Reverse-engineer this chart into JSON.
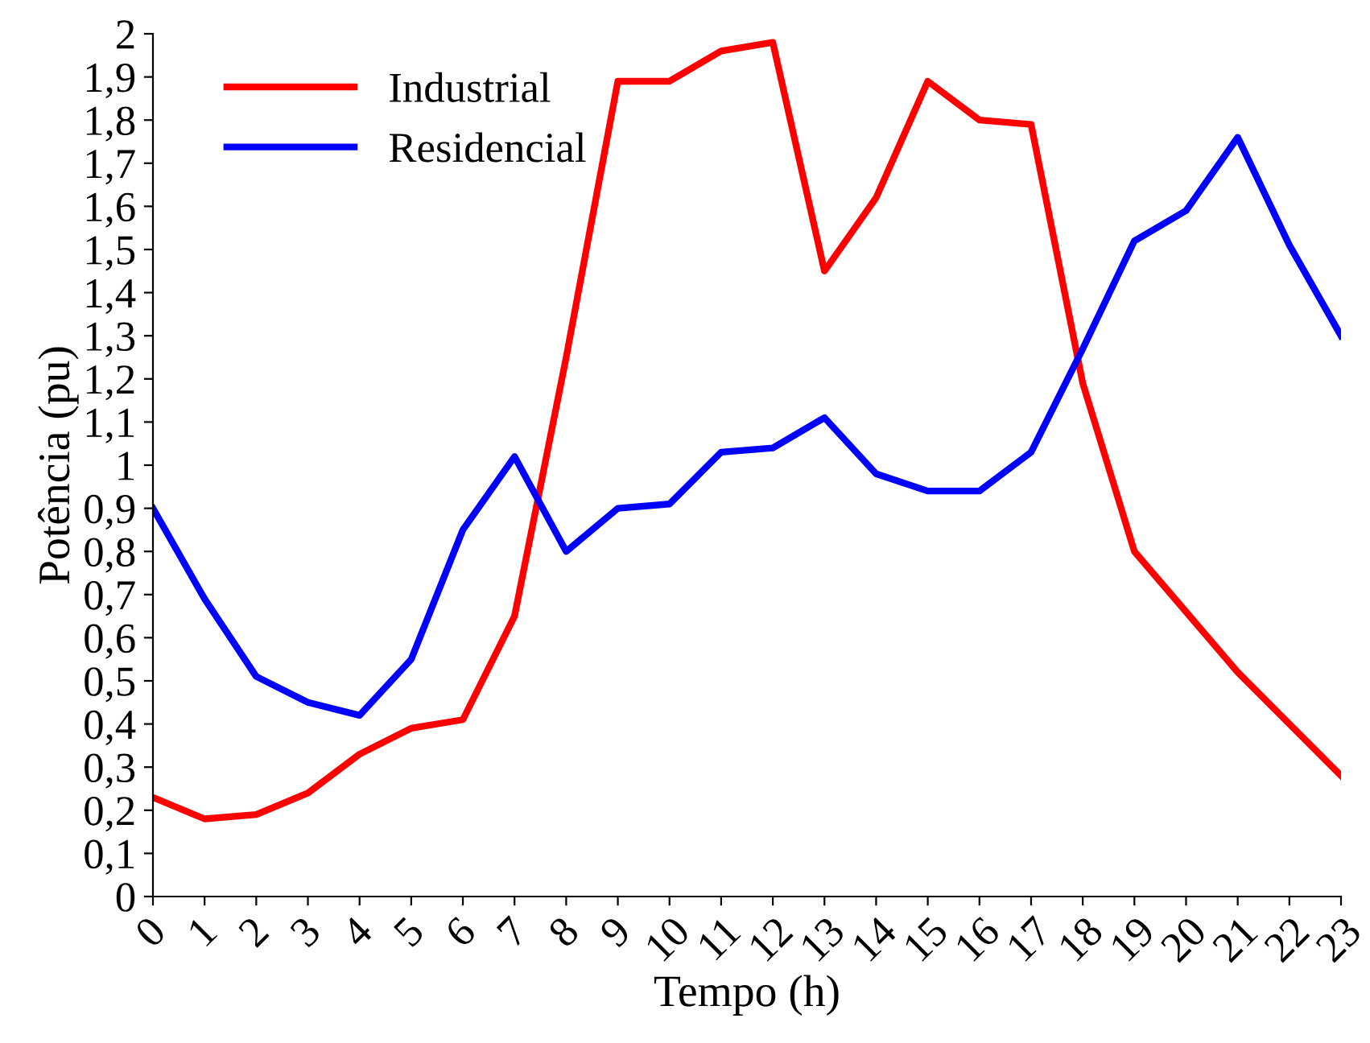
{
  "chart_data": {
    "type": "line",
    "xlabel": "Tempo (h)",
    "ylabel": "Potência (pu)",
    "x": [
      0,
      1,
      2,
      3,
      4,
      5,
      6,
      7,
      8,
      9,
      10,
      11,
      12,
      13,
      14,
      15,
      16,
      17,
      18,
      19,
      20,
      21,
      22,
      23
    ],
    "series": [
      {
        "name": "Industrial",
        "color": "#ff0000",
        "values": [
          0.23,
          0.18,
          0.19,
          0.24,
          0.33,
          0.39,
          0.41,
          0.65,
          1.25,
          1.89,
          1.89,
          1.96,
          1.98,
          1.45,
          1.62,
          1.89,
          1.8,
          1.79,
          1.19,
          0.8,
          0.66,
          0.52,
          0.4,
          0.28
        ]
      },
      {
        "name": "Residencial",
        "color": "#0000ff",
        "values": [
          0.9,
          0.69,
          0.51,
          0.45,
          0.42,
          0.55,
          0.85,
          1.02,
          0.8,
          0.9,
          0.91,
          1.03,
          1.04,
          1.11,
          0.98,
          0.94,
          0.94,
          1.03,
          1.27,
          1.52,
          1.59,
          1.76,
          1.51,
          1.3
        ]
      }
    ],
    "xlim": [
      0,
      23
    ],
    "xticks": [
      0,
      1,
      2,
      3,
      4,
      5,
      6,
      7,
      8,
      9,
      10,
      11,
      12,
      13,
      14,
      15,
      16,
      17,
      18,
      19,
      20,
      21,
      22,
      23
    ],
    "ylim": [
      0,
      2
    ],
    "yticks": [
      0,
      {
        "value": 0.1,
        "label": "0,1"
      },
      {
        "value": 0.2,
        "label": "0,2"
      },
      {
        "value": 0.3,
        "label": "0,3"
      },
      {
        "value": 0.4,
        "label": "0,4"
      },
      {
        "value": 0.5,
        "label": "0,5"
      },
      {
        "value": 0.6,
        "label": "0,6"
      },
      {
        "value": 0.7,
        "label": "0,7"
      },
      {
        "value": 0.8,
        "label": "0,8"
      },
      {
        "value": 0.9,
        "label": "0,9"
      },
      1,
      {
        "value": 1.1,
        "label": "1,1"
      },
      {
        "value": 1.2,
        "label": "1,2"
      },
      {
        "value": 1.3,
        "label": "1,3"
      },
      {
        "value": 1.4,
        "label": "1,4"
      },
      {
        "value": 1.5,
        "label": "1,5"
      },
      {
        "value": 1.6,
        "label": "1,6"
      },
      {
        "value": 1.7,
        "label": "1,7"
      },
      {
        "value": 1.8,
        "label": "1,8"
      },
      {
        "value": 1.9,
        "label": "1,9"
      },
      2
    ],
    "grid": false,
    "legend": "top left",
    "marker": "none",
    "line_style": "solid"
  }
}
